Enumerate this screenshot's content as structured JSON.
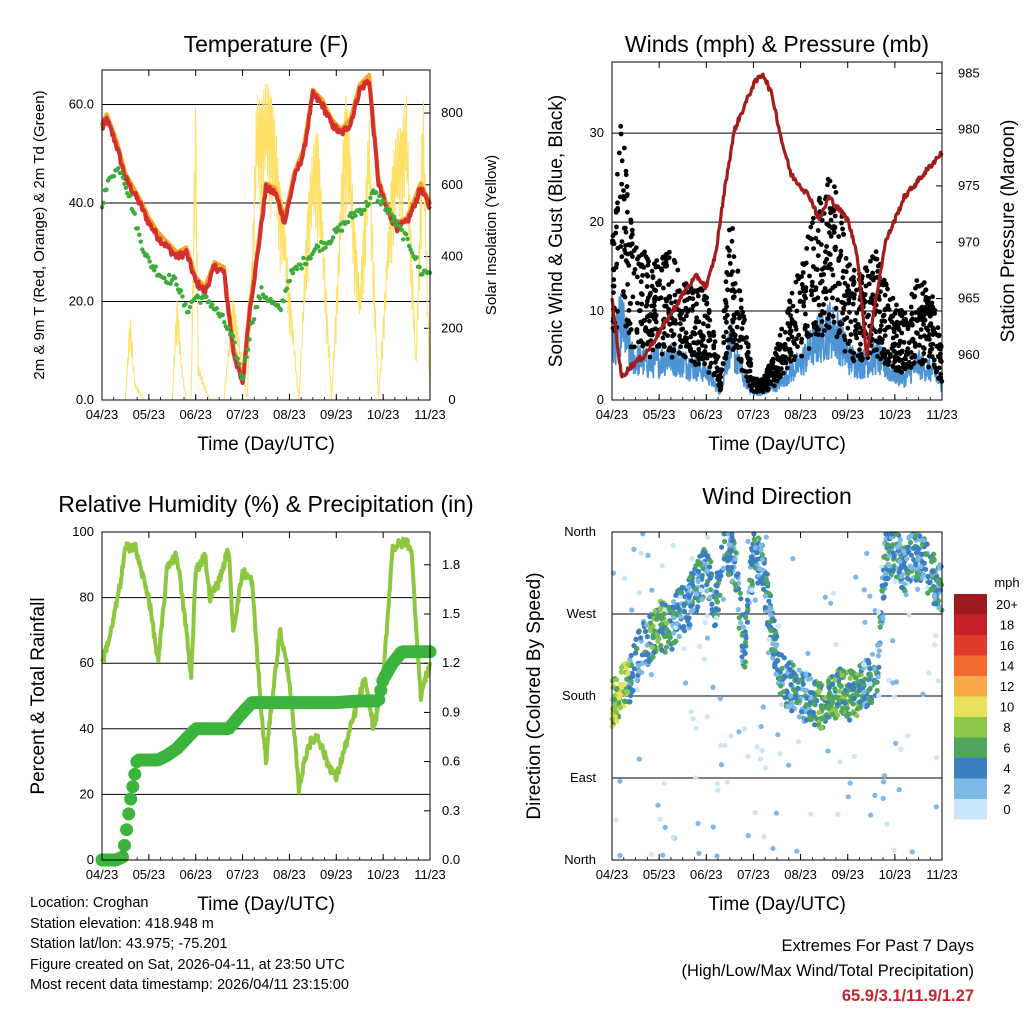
{
  "colors": {
    "temp_red": "#d32f2f",
    "temp_orange": "#f5a623",
    "dew_green": "#3cab3c",
    "solar_yellow": "#ffe066",
    "wind_blue": "#4d94d4",
    "gust_black": "#000000",
    "pressure_maroon": "#a31c1c",
    "rh_lightgreen": "#8dc63f",
    "precip_green": "#3cb33c"
  },
  "chart_data": [
    {
      "id": "temperature",
      "type": "line",
      "title": "Temperature (F)",
      "xlabel": "Time (Day/UTC)",
      "ylabel": "2m & 9m T (Red, Orange) & 2m Td (Green)",
      "y2label": "Solar Insolation (Yellow)",
      "x_ticks": [
        "04/23",
        "05/23",
        "06/23",
        "07/23",
        "08/23",
        "09/23",
        "10/23",
        "11/23"
      ],
      "ylim": [
        0,
        67
      ],
      "y_ticks": [
        "0.0",
        "20.0",
        "40.0",
        "60.0"
      ],
      "y2lim": [
        0,
        920
      ],
      "y2_ticks": [
        "0",
        "200",
        "400",
        "600",
        "800"
      ],
      "x_range": [
        0,
        7
      ],
      "series": [
        {
          "name": "2m T",
          "color": "#d32f2f",
          "x": [
            0,
            0.1,
            0.3,
            0.5,
            0.8,
            1.0,
            1.2,
            1.4,
            1.6,
            1.8,
            2.0,
            2.2,
            2.4,
            2.6,
            2.8,
            3.0,
            3.15,
            3.3,
            3.5,
            3.7,
            3.9,
            4.1,
            4.3,
            4.5,
            4.7,
            4.9,
            5.1,
            5.3,
            5.5,
            5.7,
            5.9,
            6.1,
            6.3,
            6.5,
            6.6,
            6.8,
            7.0
          ],
          "values": [
            55,
            57,
            52,
            45,
            40,
            36,
            33,
            31,
            29,
            30,
            24,
            22,
            27,
            26,
            10,
            3,
            18,
            28,
            43,
            42,
            36,
            45,
            50,
            62,
            60,
            56,
            54,
            56,
            63,
            65,
            44,
            38,
            35,
            36,
            38,
            43,
            39
          ]
        },
        {
          "name": "9m T",
          "color": "#f5a623",
          "x": [
            0,
            0.1,
            0.3,
            0.5,
            0.8,
            1.0,
            1.2,
            1.4,
            1.6,
            1.8,
            2.0,
            2.2,
            2.4,
            2.6,
            2.8,
            3.0,
            3.15,
            3.3,
            3.5,
            3.7,
            3.9,
            4.1,
            4.3,
            4.5,
            4.7,
            4.9,
            5.1,
            5.3,
            5.5,
            5.7,
            5.9,
            6.1,
            6.3,
            6.5,
            6.6,
            6.8,
            7.0
          ],
          "values": [
            56,
            58,
            53,
            46,
            41,
            37,
            34,
            32,
            30,
            31,
            25,
            23,
            28,
            27,
            11,
            4,
            19,
            29,
            44,
            43,
            37,
            46,
            51,
            63,
            61,
            57,
            55,
            57,
            64,
            66,
            45,
            39,
            36,
            37,
            39,
            44,
            40
          ]
        },
        {
          "name": "2m Td",
          "color": "#3cab3c",
          "x": [
            0,
            0.2,
            0.4,
            0.6,
            0.8,
            1.0,
            1.3,
            1.6,
            1.8,
            2.0,
            2.3,
            2.6,
            2.8,
            3.0,
            3.2,
            3.4,
            3.6,
            3.8,
            4.0,
            4.3,
            4.6,
            4.8,
            5.0,
            5.2,
            5.4,
            5.6,
            5.8,
            6.0,
            6.2,
            6.4,
            6.6,
            6.8,
            7.0
          ],
          "values": [
            40,
            46,
            47,
            41,
            33,
            28,
            25,
            24,
            18,
            21,
            20,
            16,
            12,
            4,
            16,
            22,
            20,
            18,
            25,
            28,
            31,
            32,
            34,
            36,
            38,
            39,
            42,
            40,
            37,
            34,
            31,
            26,
            26
          ]
        },
        {
          "name": "Solar",
          "color": "#ffe066",
          "axis": "y2",
          "x": [
            0.5,
            0.6,
            0.7,
            0.9,
            1.5,
            1.6,
            1.7,
            1.8,
            1.9,
            2.0,
            2.05,
            2.3,
            2.6,
            2.8,
            3.1,
            3.3,
            3.6,
            3.9,
            4.2,
            4.4,
            4.6,
            4.9,
            5.2,
            5.5,
            5.7,
            5.9,
            6.2,
            6.5,
            6.7,
            6.85,
            6.95,
            7.0
          ],
          "values": [
            0,
            250,
            50,
            0,
            0,
            300,
            100,
            0,
            0,
            920,
            100,
            0,
            0,
            300,
            0,
            850,
            900,
            500,
            0,
            600,
            800,
            0,
            900,
            300,
            800,
            0,
            700,
            850,
            100,
            900,
            300,
            0
          ]
        }
      ]
    },
    {
      "id": "winds",
      "type": "scatter",
      "title": "Winds (mph) & Pressure (mb)",
      "xlabel": "Time (Day/UTC)",
      "ylabel": "Sonic Wind & Gust (Blue, Black)",
      "y2label": "Station Pressure (Maroon)",
      "x_ticks": [
        "04/23",
        "05/23",
        "06/23",
        "07/23",
        "08/23",
        "09/23",
        "10/23",
        "11/23"
      ],
      "ylim": [
        0,
        38
      ],
      "y_ticks": [
        "0",
        "10",
        "20",
        "30"
      ],
      "y2lim": [
        956,
        986
      ],
      "y2_ticks": [
        "960",
        "965",
        "970",
        "975",
        "980",
        "985"
      ],
      "x_range": [
        0,
        7
      ],
      "wind_envelope": {
        "x": [
          0,
          0.2,
          0.4,
          0.8,
          1.2,
          1.6,
          2.0,
          2.3,
          2.5,
          2.8,
          3.0,
          3.2,
          3.5,
          3.8,
          4.0,
          4.3,
          4.6,
          4.8,
          5.0,
          5.3,
          5.6,
          5.9,
          6.2,
          6.5,
          6.8,
          7.0
        ],
        "values": [
          7,
          11,
          6,
          5,
          6,
          5,
          4,
          1,
          8,
          3,
          1,
          1,
          2,
          4,
          5,
          8,
          10,
          9,
          6,
          5,
          6,
          4,
          3,
          5,
          4,
          2
        ]
      },
      "gust_envelope": {
        "x": [
          0,
          0.2,
          0.4,
          0.8,
          1.2,
          1.6,
          2.0,
          2.3,
          2.5,
          2.8,
          3.0,
          3.2,
          3.5,
          3.8,
          4.0,
          4.3,
          4.6,
          4.8,
          5.0,
          5.3,
          5.6,
          5.9,
          6.2,
          6.5,
          6.8,
          7.0
        ],
        "values": [
          15,
          27,
          17,
          13,
          14,
          12,
          10,
          3,
          18,
          8,
          2,
          2,
          5,
          10,
          13,
          18,
          22,
          20,
          13,
          12,
          14,
          10,
          8,
          12,
          10,
          5
        ]
      },
      "pressure": {
        "x": [
          0,
          0.2,
          0.4,
          0.7,
          1.0,
          1.3,
          1.6,
          1.8,
          2.0,
          2.2,
          2.4,
          2.6,
          2.8,
          3.0,
          3.2,
          3.4,
          3.6,
          3.8,
          4.0,
          4.2,
          4.4,
          4.6,
          4.8,
          5.0,
          5.2,
          5.4,
          5.6,
          5.8,
          6.0,
          6.2,
          6.4,
          6.6,
          6.8,
          7.0
        ],
        "values": [
          965,
          958,
          959,
          960,
          962,
          964,
          966,
          967,
          966,
          969,
          975,
          980,
          982,
          984,
          985,
          983,
          979,
          976,
          975,
          974,
          972,
          974,
          973,
          972,
          969,
          960,
          965,
          970,
          972,
          974,
          975,
          976,
          977,
          978
        ]
      }
    },
    {
      "id": "humidity",
      "type": "line",
      "title": "Relative Humidity (%) & Precipitation (in)",
      "xlabel": "Time (Day/UTC)",
      "ylabel": "Percent & Total Rainfall",
      "x_ticks": [
        "04/23",
        "05/23",
        "06/23",
        "07/23",
        "08/23",
        "09/23",
        "10/23",
        "11/23"
      ],
      "ylim": [
        0,
        100
      ],
      "y_ticks": [
        "0",
        "20",
        "40",
        "60",
        "80",
        "100"
      ],
      "y2lim": [
        0,
        2.0
      ],
      "y2_ticks": [
        "0.0",
        "0.3",
        "0.6",
        "0.9",
        "1.2",
        "1.5",
        "1.8"
      ],
      "x_range": [
        0,
        7
      ],
      "series": [
        {
          "name": "RH",
          "color": "#8dc63f",
          "x": [
            0,
            0.2,
            0.4,
            0.5,
            0.7,
            0.8,
            1.0,
            1.2,
            1.4,
            1.6,
            1.8,
            1.9,
            2.0,
            2.2,
            2.3,
            2.5,
            2.7,
            2.8,
            3.0,
            3.2,
            3.4,
            3.5,
            3.6,
            3.8,
            4.0,
            4.2,
            4.4,
            4.6,
            4.8,
            5.0,
            5.2,
            5.4,
            5.6,
            5.8,
            6.0,
            6.2,
            6.3,
            6.5,
            6.6,
            6.8,
            7.0
          ],
          "values": [
            60,
            70,
            85,
            95,
            96,
            90,
            80,
            60,
            90,
            93,
            70,
            55,
            88,
            93,
            80,
            85,
            95,
            70,
            88,
            85,
            45,
            30,
            45,
            70,
            55,
            22,
            35,
            38,
            30,
            25,
            35,
            45,
            55,
            40,
            55,
            95,
            96,
            97,
            95,
            50,
            60
          ]
        },
        {
          "name": "Total Rainfall",
          "color": "#3cb33c",
          "axis": "y2",
          "x": [
            0,
            0.3,
            0.45,
            0.6,
            0.75,
            1.0,
            1.2,
            1.4,
            1.6,
            1.8,
            2.0,
            2.2,
            2.5,
            2.7,
            3.0,
            3.2,
            3.5,
            3.8,
            4.0,
            4.5,
            5.0,
            5.5,
            5.9,
            6.0,
            6.2,
            6.4,
            6.6,
            7.0
          ],
          "values": [
            0,
            0,
            0.02,
            0.35,
            0.61,
            0.61,
            0.61,
            0.64,
            0.68,
            0.74,
            0.8,
            0.8,
            0.8,
            0.8,
            0.9,
            0.96,
            0.96,
            0.96,
            0.96,
            0.96,
            0.96,
            0.97,
            0.97,
            1.1,
            1.2,
            1.27,
            1.27,
            1.27
          ]
        }
      ]
    },
    {
      "id": "wind_direction",
      "type": "scatter",
      "title": "Wind Direction",
      "xlabel": "Time (Day/UTC)",
      "ylabel": "Direction (Colored By Speed)",
      "x_ticks": [
        "04/23",
        "05/23",
        "06/23",
        "07/23",
        "08/23",
        "09/23",
        "10/23",
        "11/23"
      ],
      "y_ticks": [
        "North",
        "East",
        "South",
        "West",
        "North"
      ],
      "ylim": [
        0,
        360
      ],
      "x_range": [
        0,
        7
      ],
      "direction_trace": {
        "x": [
          0,
          0.2,
          0.4,
          0.6,
          0.8,
          1.0,
          1.2,
          1.4,
          1.6,
          1.8,
          2.0,
          2.2,
          2.4,
          2.6,
          2.8,
          3.0,
          3.2,
          3.4,
          3.6,
          3.8,
          4.0,
          4.2,
          4.4,
          4.6,
          4.8,
          5.0,
          5.2,
          5.4,
          5.6,
          5.8,
          6.0,
          6.2,
          6.4,
          6.6,
          6.8,
          7.0
        ],
        "values": [
          170,
          185,
          200,
          230,
          245,
          260,
          250,
          270,
          280,
          300,
          320,
          280,
          340,
          330,
          230,
          340,
          320,
          250,
          200,
          190,
          180,
          175,
          170,
          175,
          185,
          180,
          185,
          195,
          190,
          330,
          340,
          320,
          335,
          330,
          310,
          300
        ]
      },
      "legend_title": "mph",
      "legend_labels": [
        "20+",
        "18",
        "16",
        "14",
        "12",
        "10",
        "8",
        "6",
        "4",
        "2",
        "0"
      ],
      "legend_colors": [
        "#9b1b1e",
        "#c62026",
        "#e03a2a",
        "#f26a30",
        "#f9a84a",
        "#e6e05a",
        "#8cc84b",
        "#4fa55c",
        "#3a7fc1",
        "#7eb8e6",
        "#c9e5f8"
      ]
    }
  ],
  "info": {
    "location": "Location: Croghan",
    "elevation": "Station elevation: 418.948 m",
    "latlon": "Station lat/lon: 43.975; -75.201",
    "created": "Figure created on Sat, 2026-04-11, at 23:50 UTC",
    "recent": "Most recent data timestamp: 2026/04/11 23:15:00"
  },
  "extremes": {
    "line1": "Extremes For Past 7 Days",
    "line2": "(High/Low/Max Wind/Total Precipitation)",
    "values": "65.9/3.1/11.9/1.27"
  }
}
